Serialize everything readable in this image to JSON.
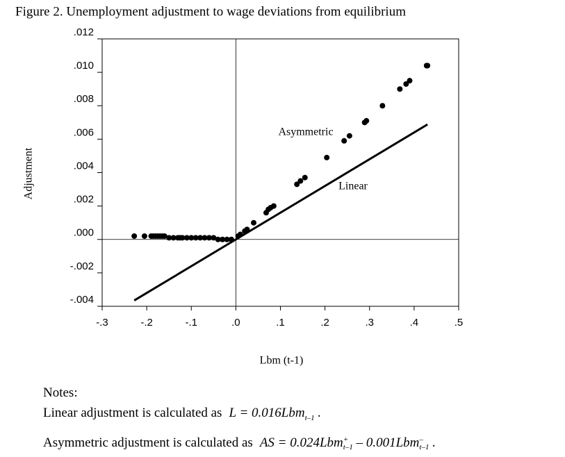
{
  "chart_data": {
    "type": "scatter",
    "title": "Figure 2. Unemployment adjustment to wage deviations from equilibrium",
    "x_label": "Lbm (t-1)",
    "y_label": "Adjustment",
    "xlim": [
      -0.3,
      0.5
    ],
    "ylim": [
      -0.004,
      0.012
    ],
    "xticks": [
      {
        "value": -0.3,
        "label": "-.3"
      },
      {
        "value": -0.2,
        "label": "-.2"
      },
      {
        "value": -0.1,
        "label": "-.1"
      },
      {
        "value": 0,
        "label": ".0"
      },
      {
        "value": 0.1,
        "label": ".1"
      },
      {
        "value": 0.2,
        "label": ".2"
      },
      {
        "value": 0.3,
        "label": ".3"
      },
      {
        "value": 0.4,
        "label": ".4"
      },
      {
        "value": 0.5,
        "label": ".5"
      }
    ],
    "yticks": [
      {
        "value": -0.004,
        "label": "-.004"
      },
      {
        "value": -0.002,
        "label": "-.002"
      },
      {
        "value": 0,
        "label": ".000"
      },
      {
        "value": 0.002,
        "label": ".002"
      },
      {
        "value": 0.004,
        "label": ".004"
      },
      {
        "value": 0.006,
        "label": ".006"
      },
      {
        "value": 0.008,
        "label": ".008"
      },
      {
        "value": 0.01,
        "label": ".010"
      },
      {
        "value": 0.012,
        "label": ".012"
      }
    ],
    "zero_lines": true,
    "series": [
      {
        "style": "markers",
        "color": "#000000",
        "x": [
          -0.228,
          -0.205,
          -0.19,
          -0.185,
          -0.18,
          -0.175,
          -0.17,
          -0.165,
          -0.16,
          -0.15,
          -0.14,
          -0.13,
          -0.125,
          -0.12,
          -0.11,
          -0.1,
          -0.09,
          -0.08,
          -0.07,
          -0.06,
          -0.05,
          -0.04,
          -0.03,
          -0.02,
          -0.01,
          0.005,
          0.01,
          0.02,
          0.025,
          0.04,
          0.068,
          0.073,
          0.078,
          0.085,
          0.137,
          0.145,
          0.155,
          0.204,
          0.243,
          0.255,
          0.289,
          0.293,
          0.329,
          0.368,
          0.382,
          0.39,
          0.428,
          0.43
        ],
        "values": [
          0.0002,
          0.0002,
          0.0002,
          0.0002,
          0.0002,
          0.0002,
          0.0002,
          0.0002,
          0.0002,
          0.0001,
          0.0001,
          0.0001,
          0.0001,
          0.0001,
          0.0001,
          0.0001,
          0.0001,
          0.0001,
          0.0001,
          0.0001,
          0.0001,
          0,
          0,
          0,
          0,
          0.0002,
          0.0003,
          0.0005,
          0.0006,
          0.001,
          0.0016,
          0.0018,
          0.0019,
          0.002,
          0.0033,
          0.0035,
          0.0037,
          0.0049,
          0.0059,
          0.0062,
          0.007,
          0.0071,
          0.008,
          0.009,
          0.0093,
          0.0095,
          0.0104,
          0.0104
        ]
      },
      {
        "style": "line",
        "color": "#000000",
        "x": [
          -0.228,
          0.43
        ],
        "values": [
          -0.00365,
          0.00688
        ]
      }
    ],
    "annotations": [
      "Asymmetric",
      "Linear"
    ]
  },
  "notes": {
    "heading": "Notes:",
    "lines": [
      {
        "text": "Linear adjustment is calculated as",
        "formula": [
          {
            "text": "L = 0.016Lbm"
          },
          {
            "sub": "t–1"
          },
          {
            "text": " ."
          }
        ]
      },
      {
        "text": "Asymmetric adjustment is calculated as",
        "formula": [
          {
            "text": "AS = 0.024Lbm"
          },
          {
            "sup": "+",
            "sub": "t–1"
          },
          {
            "text": " – 0.001Lbm"
          },
          {
            "sup": "–",
            "sub": "t–1"
          },
          {
            "text": " ."
          }
        ]
      }
    ]
  }
}
